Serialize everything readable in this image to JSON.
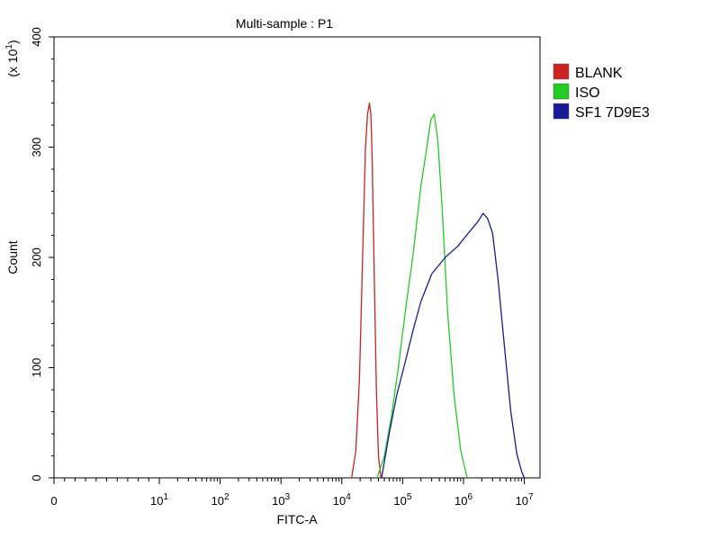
{
  "chart_data": {
    "type": "line",
    "title": "Multi-sample : P1",
    "xlabel": "FITC-A",
    "ylabel": "Count",
    "y_multiplier": {
      "base": "(x 10",
      "exp": "1",
      "close": ")"
    },
    "xscale": "log",
    "xlim": [
      0,
      10000000
    ],
    "ylim": [
      0,
      400
    ],
    "x_ticks": [
      {
        "base": "0",
        "exp": ""
      },
      {
        "base": "10",
        "exp": "1"
      },
      {
        "base": "10",
        "exp": "2"
      },
      {
        "base": "10",
        "exp": "3"
      },
      {
        "base": "10",
        "exp": "4"
      },
      {
        "base": "10",
        "exp": "5"
      },
      {
        "base": "10",
        "exp": "6"
      },
      {
        "base": "10",
        "exp": "7"
      }
    ],
    "y_ticks": [
      "0",
      "100",
      "200",
      "300",
      "400"
    ],
    "y_tick_values": [
      0,
      100,
      200,
      300,
      400
    ],
    "grid": false,
    "legend_position": "top-right",
    "series": [
      {
        "name": "BLANK",
        "color": "#cc2222",
        "x": [
          14500,
          17000,
          19500,
          22000,
          24500,
          26500,
          28500,
          30000,
          31500,
          34000,
          37000,
          40000,
          44000
        ],
        "y": [
          0,
          25,
          90,
          200,
          300,
          330,
          340,
          330,
          290,
          190,
          80,
          20,
          0
        ]
      },
      {
        "name": "ISO",
        "color": "#22cc22",
        "x": [
          38000,
          50000,
          65000,
          85000,
          110000,
          150000,
          200000,
          250000,
          290000,
          330000,
          380000,
          450000,
          550000,
          700000,
          900000,
          1150000
        ],
        "y": [
          0,
          20,
          55,
          100,
          150,
          205,
          265,
          300,
          325,
          330,
          305,
          240,
          150,
          75,
          25,
          0
        ]
      },
      {
        "name": "SF1 7D9E3",
        "color": "#1a1a99",
        "x": [
          45000,
          60000,
          80000,
          110000,
          150000,
          200000,
          300000,
          500000,
          800000,
          1200000,
          1700000,
          2100000,
          2500000,
          3000000,
          3700000,
          4700000,
          6000000,
          7500000,
          9000000,
          10000000
        ],
        "y": [
          0,
          40,
          75,
          105,
          135,
          160,
          185,
          200,
          210,
          222,
          232,
          240,
          235,
          222,
          180,
          120,
          60,
          22,
          6,
          0
        ]
      }
    ]
  }
}
